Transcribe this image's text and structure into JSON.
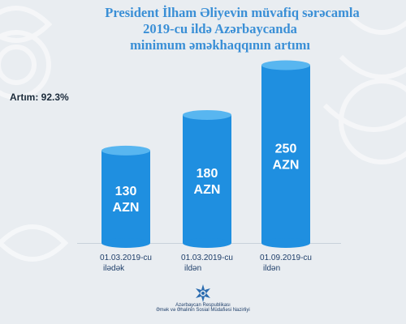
{
  "title": {
    "line1": "President İlham Əliyevin müvafiq sərəcamla",
    "line2": "2019-cu ildə Azərbaycanda",
    "line3": "minimum əməkhaqqının artımı"
  },
  "growth_label": "Artım: 92.3%",
  "chart_data": {
    "type": "bar",
    "title": "",
    "xlabel": "",
    "ylabel": "",
    "ylim": [
      0,
      300
    ],
    "grid": false,
    "categories": [
      [
        "01.03.2019-cu",
        "ilədək"
      ],
      [
        "01.03.2019-cu",
        "ildən"
      ],
      [
        "01.09.2019-cu",
        "ildən"
      ]
    ],
    "values": [
      130,
      180,
      250
    ],
    "value_labels": [
      [
        "130",
        "AZN"
      ],
      [
        "180",
        "AZN"
      ],
      [
        "250",
        "AZN"
      ]
    ],
    "bar_color": "#1f8fe0",
    "bar_top_color": "#58b6f0",
    "label_color": "#ffffff"
  },
  "footer": {
    "org_line1": "Azərbaycan Respublikası",
    "org_line2": "Əmək və Əhalinin Sosial Müdafiəsi Nazirliyi"
  }
}
